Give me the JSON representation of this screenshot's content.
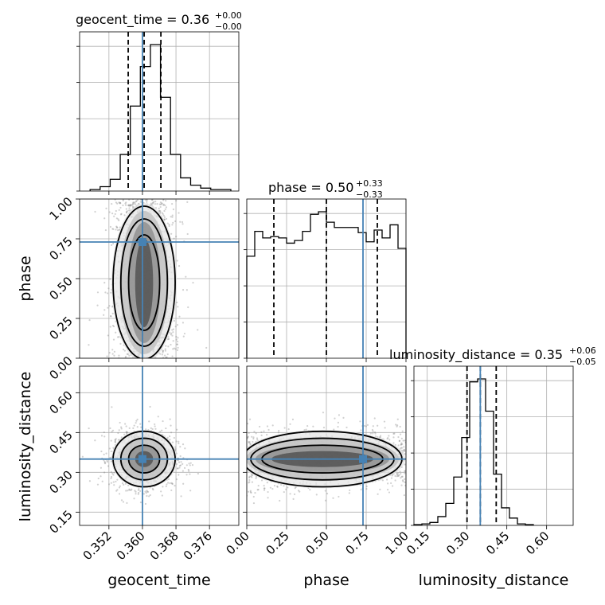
{
  "chart_data": {
    "type": "corner",
    "truth_color": "#4682b4",
    "parameters": [
      {
        "name": "geocent_time",
        "xlabel": "geocent_time",
        "ylabel": "",
        "range": [
          0.345,
          0.383
        ],
        "ticks": [
          0.352,
          0.36,
          0.368,
          0.376
        ],
        "tick_labels": [
          "0.352",
          "0.360",
          "0.368",
          "0.376"
        ],
        "title_main": "geocent_time = 0.36",
        "title_sup": "+0.00",
        "title_sub": "−0.00",
        "median": 0.3604,
        "q_low": 0.3566,
        "q_high": 0.3644,
        "truth": 0.36,
        "hist_edges": [
          0.3475,
          0.3499,
          0.3523,
          0.3547,
          0.3571,
          0.3595,
          0.3619,
          0.3643,
          0.3667,
          0.3691,
          0.3715,
          0.3739,
          0.3763,
          0.3787,
          0.3811
        ],
        "hist_counts": [
          1,
          3,
          8,
          25,
          58,
          85,
          100,
          64,
          25,
          9,
          4,
          2,
          1,
          1
        ]
      },
      {
        "name": "phase",
        "xlabel": "phase",
        "ylabel": "phase",
        "range": [
          0.0,
          1.0
        ],
        "ticks": [
          0.0,
          0.25,
          0.5,
          0.75,
          1.0
        ],
        "tick_labels": [
          "0.00",
          "0.25",
          "0.50",
          "0.75",
          "1.00"
        ],
        "title_main": "phase = 0.50",
        "title_sup": "+0.33",
        "title_sub": "−0.33",
        "median": 0.5,
        "q_low": 0.17,
        "q_high": 0.82,
        "truth": 0.73,
        "hist_edges": [
          0.0,
          0.05,
          0.1,
          0.15,
          0.2,
          0.25,
          0.3,
          0.35,
          0.4,
          0.45,
          0.5,
          0.55,
          0.6,
          0.65,
          0.7,
          0.75,
          0.8,
          0.85,
          0.9,
          0.95,
          1.0
        ],
        "hist_counts": [
          78,
          97,
          92,
          93,
          92,
          88,
          90,
          97,
          110,
          112,
          104,
          100,
          100,
          100,
          96,
          89,
          98,
          92,
          102,
          84
        ]
      },
      {
        "name": "luminosity_distance",
        "xlabel": "luminosity_distance",
        "ylabel": "luminosity_distance",
        "range": [
          0.1,
          0.7
        ],
        "ticks": [
          0.15,
          0.3,
          0.45,
          0.6
        ],
        "tick_labels": [
          "0.15",
          "0.30",
          "0.45",
          "0.60"
        ],
        "title_main": "luminosity_distance = 0.35",
        "title_sup": "+0.06",
        "title_sub": "−0.05",
        "median": 0.35,
        "q_low": 0.3,
        "q_high": 0.41,
        "truth": 0.35,
        "hist_edges": [
          0.1,
          0.13,
          0.16,
          0.19,
          0.22,
          0.25,
          0.28,
          0.31,
          0.34,
          0.37,
          0.4,
          0.43,
          0.46,
          0.49,
          0.52,
          0.55
        ],
        "hist_counts": [
          0.5,
          1,
          2,
          6,
          15,
          33,
          60,
          98,
          100,
          78,
          35,
          12,
          5,
          1,
          0.5
        ]
      }
    ],
    "grid": true
  }
}
